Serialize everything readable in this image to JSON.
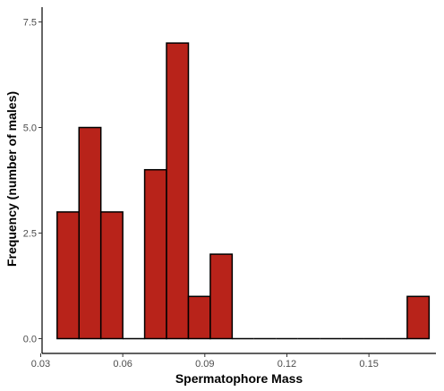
{
  "chart_data": {
    "type": "bar",
    "subtype": "histogram",
    "xlabel": "Spermatophore Mass",
    "ylabel": "Frequency (number of males)",
    "xlim": [
      0.0305,
      0.1745
    ],
    "ylim": [
      -0.35,
      7.85
    ],
    "x_ticks": [
      {
        "value": 0.03,
        "label": "0.03"
      },
      {
        "value": 0.06,
        "label": "0.06"
      },
      {
        "value": 0.09,
        "label": "0.09"
      },
      {
        "value": 0.12,
        "label": "0.12"
      },
      {
        "value": 0.15,
        "label": "0.15"
      }
    ],
    "y_ticks": [
      {
        "value": 0,
        "label": "0.0"
      },
      {
        "value": 2.5,
        "label": "2.5"
      },
      {
        "value": 5,
        "label": "5.0"
      },
      {
        "value": 7.5,
        "label": "7.5"
      }
    ],
    "bins": [
      {
        "x0": 0.036,
        "x1": 0.044,
        "count": 3
      },
      {
        "x0": 0.044,
        "x1": 0.052,
        "count": 5
      },
      {
        "x0": 0.052,
        "x1": 0.06,
        "count": 3
      },
      {
        "x0": 0.06,
        "x1": 0.068,
        "count": 0
      },
      {
        "x0": 0.068,
        "x1": 0.076,
        "count": 4
      },
      {
        "x0": 0.076,
        "x1": 0.084,
        "count": 7
      },
      {
        "x0": 0.084,
        "x1": 0.092,
        "count": 1
      },
      {
        "x0": 0.092,
        "x1": 0.1,
        "count": 2
      },
      {
        "x0": 0.1,
        "x1": 0.108,
        "count": 0
      },
      {
        "x0": 0.108,
        "x1": 0.116,
        "count": 0
      },
      {
        "x0": 0.116,
        "x1": 0.124,
        "count": 0
      },
      {
        "x0": 0.124,
        "x1": 0.132,
        "count": 0
      },
      {
        "x0": 0.132,
        "x1": 0.14,
        "count": 0
      },
      {
        "x0": 0.14,
        "x1": 0.148,
        "count": 0
      },
      {
        "x0": 0.148,
        "x1": 0.156,
        "count": 0
      },
      {
        "x0": 0.156,
        "x1": 0.164,
        "count": 0
      },
      {
        "x0": 0.164,
        "x1": 0.172,
        "count": 1
      }
    ],
    "bar_fill": "#b8231a",
    "bar_stroke": "#000000",
    "grid": false,
    "legend": "none"
  }
}
